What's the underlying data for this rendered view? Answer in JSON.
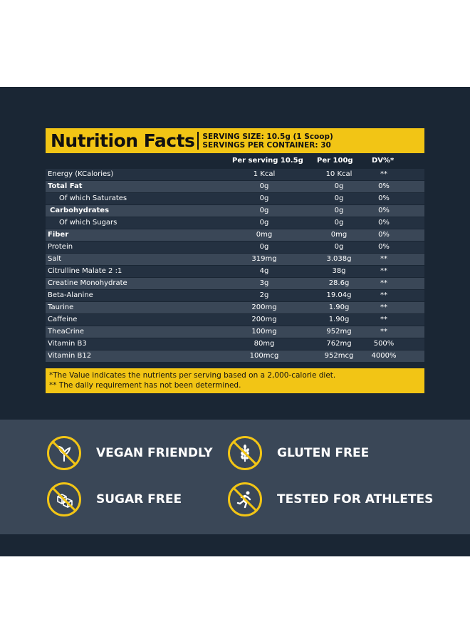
{
  "header": {
    "title": "Nutrition Facts",
    "serving_size": "SERVING SIZE: 10.5g (1 Scoop)",
    "servings_per_container": "SERVINGS PER CONTAINER: 30"
  },
  "columns": {
    "per_serving": "Per serving 10.5g",
    "per_100g": "Per 100g",
    "dv": "DV%*"
  },
  "rows": [
    {
      "name": "Energy (KCalories)",
      "serving": "1 Kcal",
      "per100": "10 Kcal",
      "dv": "**"
    },
    {
      "name": "Total Fat",
      "serving": "0g",
      "per100": "0g",
      "dv": "0%"
    },
    {
      "name": "Of which Saturates",
      "serving": "0g",
      "per100": "0g",
      "dv": "0%"
    },
    {
      "name": "Carbohydrates",
      "serving": "0g",
      "per100": "0g",
      "dv": "0%"
    },
    {
      "name": "Of which Sugars",
      "serving": "0g",
      "per100": "0g",
      "dv": "0%"
    },
    {
      "name": "Fiber",
      "serving": "0mg",
      "per100": "0mg",
      "dv": "0%"
    },
    {
      "name": "Protein",
      "serving": "0g",
      "per100": "0g",
      "dv": "0%"
    },
    {
      "name": "Salt",
      "serving": "319mg",
      "per100": "3.038g",
      "dv": "**"
    },
    {
      "name": "Citrulline Malate 2 :1",
      "serving": "4g",
      "per100": "38g",
      "dv": "**"
    },
    {
      "name": "Creatine Monohydrate",
      "serving": "3g",
      "per100": "28.6g",
      "dv": "**"
    },
    {
      "name": "Beta-Alanine",
      "serving": "2g",
      "per100": "19.04g",
      "dv": "**"
    },
    {
      "name": "Taurine",
      "serving": "200mg",
      "per100": "1.90g",
      "dv": "**"
    },
    {
      "name": "Caffeine",
      "serving": "200mg",
      "per100": "1.90g",
      "dv": "**"
    },
    {
      "name": "TheaCrine",
      "serving": "100mg",
      "per100": "952mg",
      "dv": "**"
    },
    {
      "name": "Vitamin B3",
      "serving": "80mg",
      "per100": "762mg",
      "dv": "500%"
    },
    {
      "name": "Vitamin B12",
      "serving": "100mcg",
      "per100": "952mcg",
      "dv": "4000%"
    }
  ],
  "footer": {
    "note1": "*The Value indicates the nutrients per serving based on a 2,000-calorie diet.",
    "note2": "** The daily requirement has not been determined."
  },
  "badges": {
    "vegan": "VEGAN FRIENDLY",
    "gluten": "GLUTEN FREE",
    "sugar": "SUGAR FREE",
    "athletes": "TESTED FOR ATHLETES"
  },
  "colors": {
    "accent": "#f2c515",
    "dark": "#1a2634",
    "slate": "#3a4757"
  }
}
